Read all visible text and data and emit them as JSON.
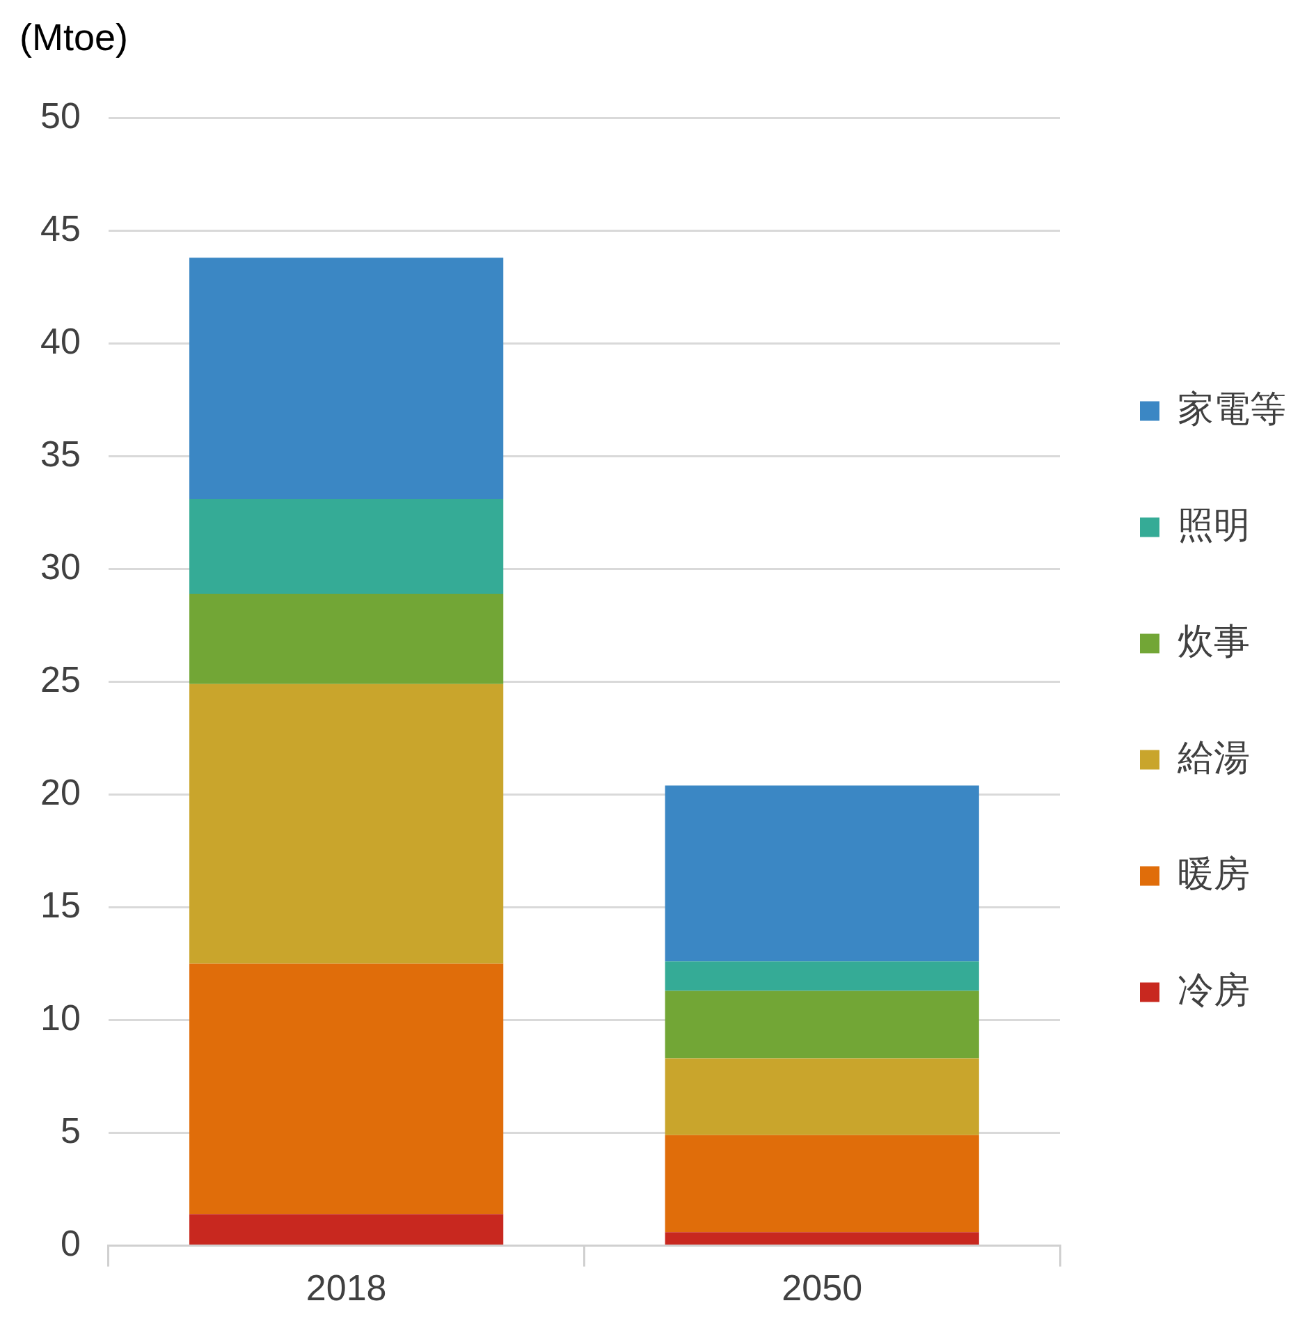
{
  "chart_data": {
    "type": "bar",
    "ylabel": "(Mtoe)",
    "categories": [
      "2018",
      "2050"
    ],
    "stacked": true,
    "ylim": [
      0,
      50
    ],
    "yticks": [
      0,
      5,
      10,
      15,
      20,
      25,
      30,
      35,
      40,
      45,
      50
    ],
    "grid": "y",
    "legend": "right",
    "series": [
      {
        "name": "冷房",
        "color": "#c8281f",
        "values": [
          1.4,
          0.6
        ]
      },
      {
        "name": "暖房",
        "color": "#e06d0a",
        "values": [
          11.1,
          4.3
        ]
      },
      {
        "name": "給湯",
        "color": "#c9a52c",
        "values": [
          12.4,
          3.4
        ]
      },
      {
        "name": "炊事",
        "color": "#72a636",
        "values": [
          4.0,
          3.0
        ]
      },
      {
        "name": "照明",
        "color": "#35ab96",
        "values": [
          4.2,
          1.3
        ]
      },
      {
        "name": "家電等",
        "color": "#3b87c4",
        "values": [
          10.7,
          7.8
        ]
      }
    ]
  }
}
